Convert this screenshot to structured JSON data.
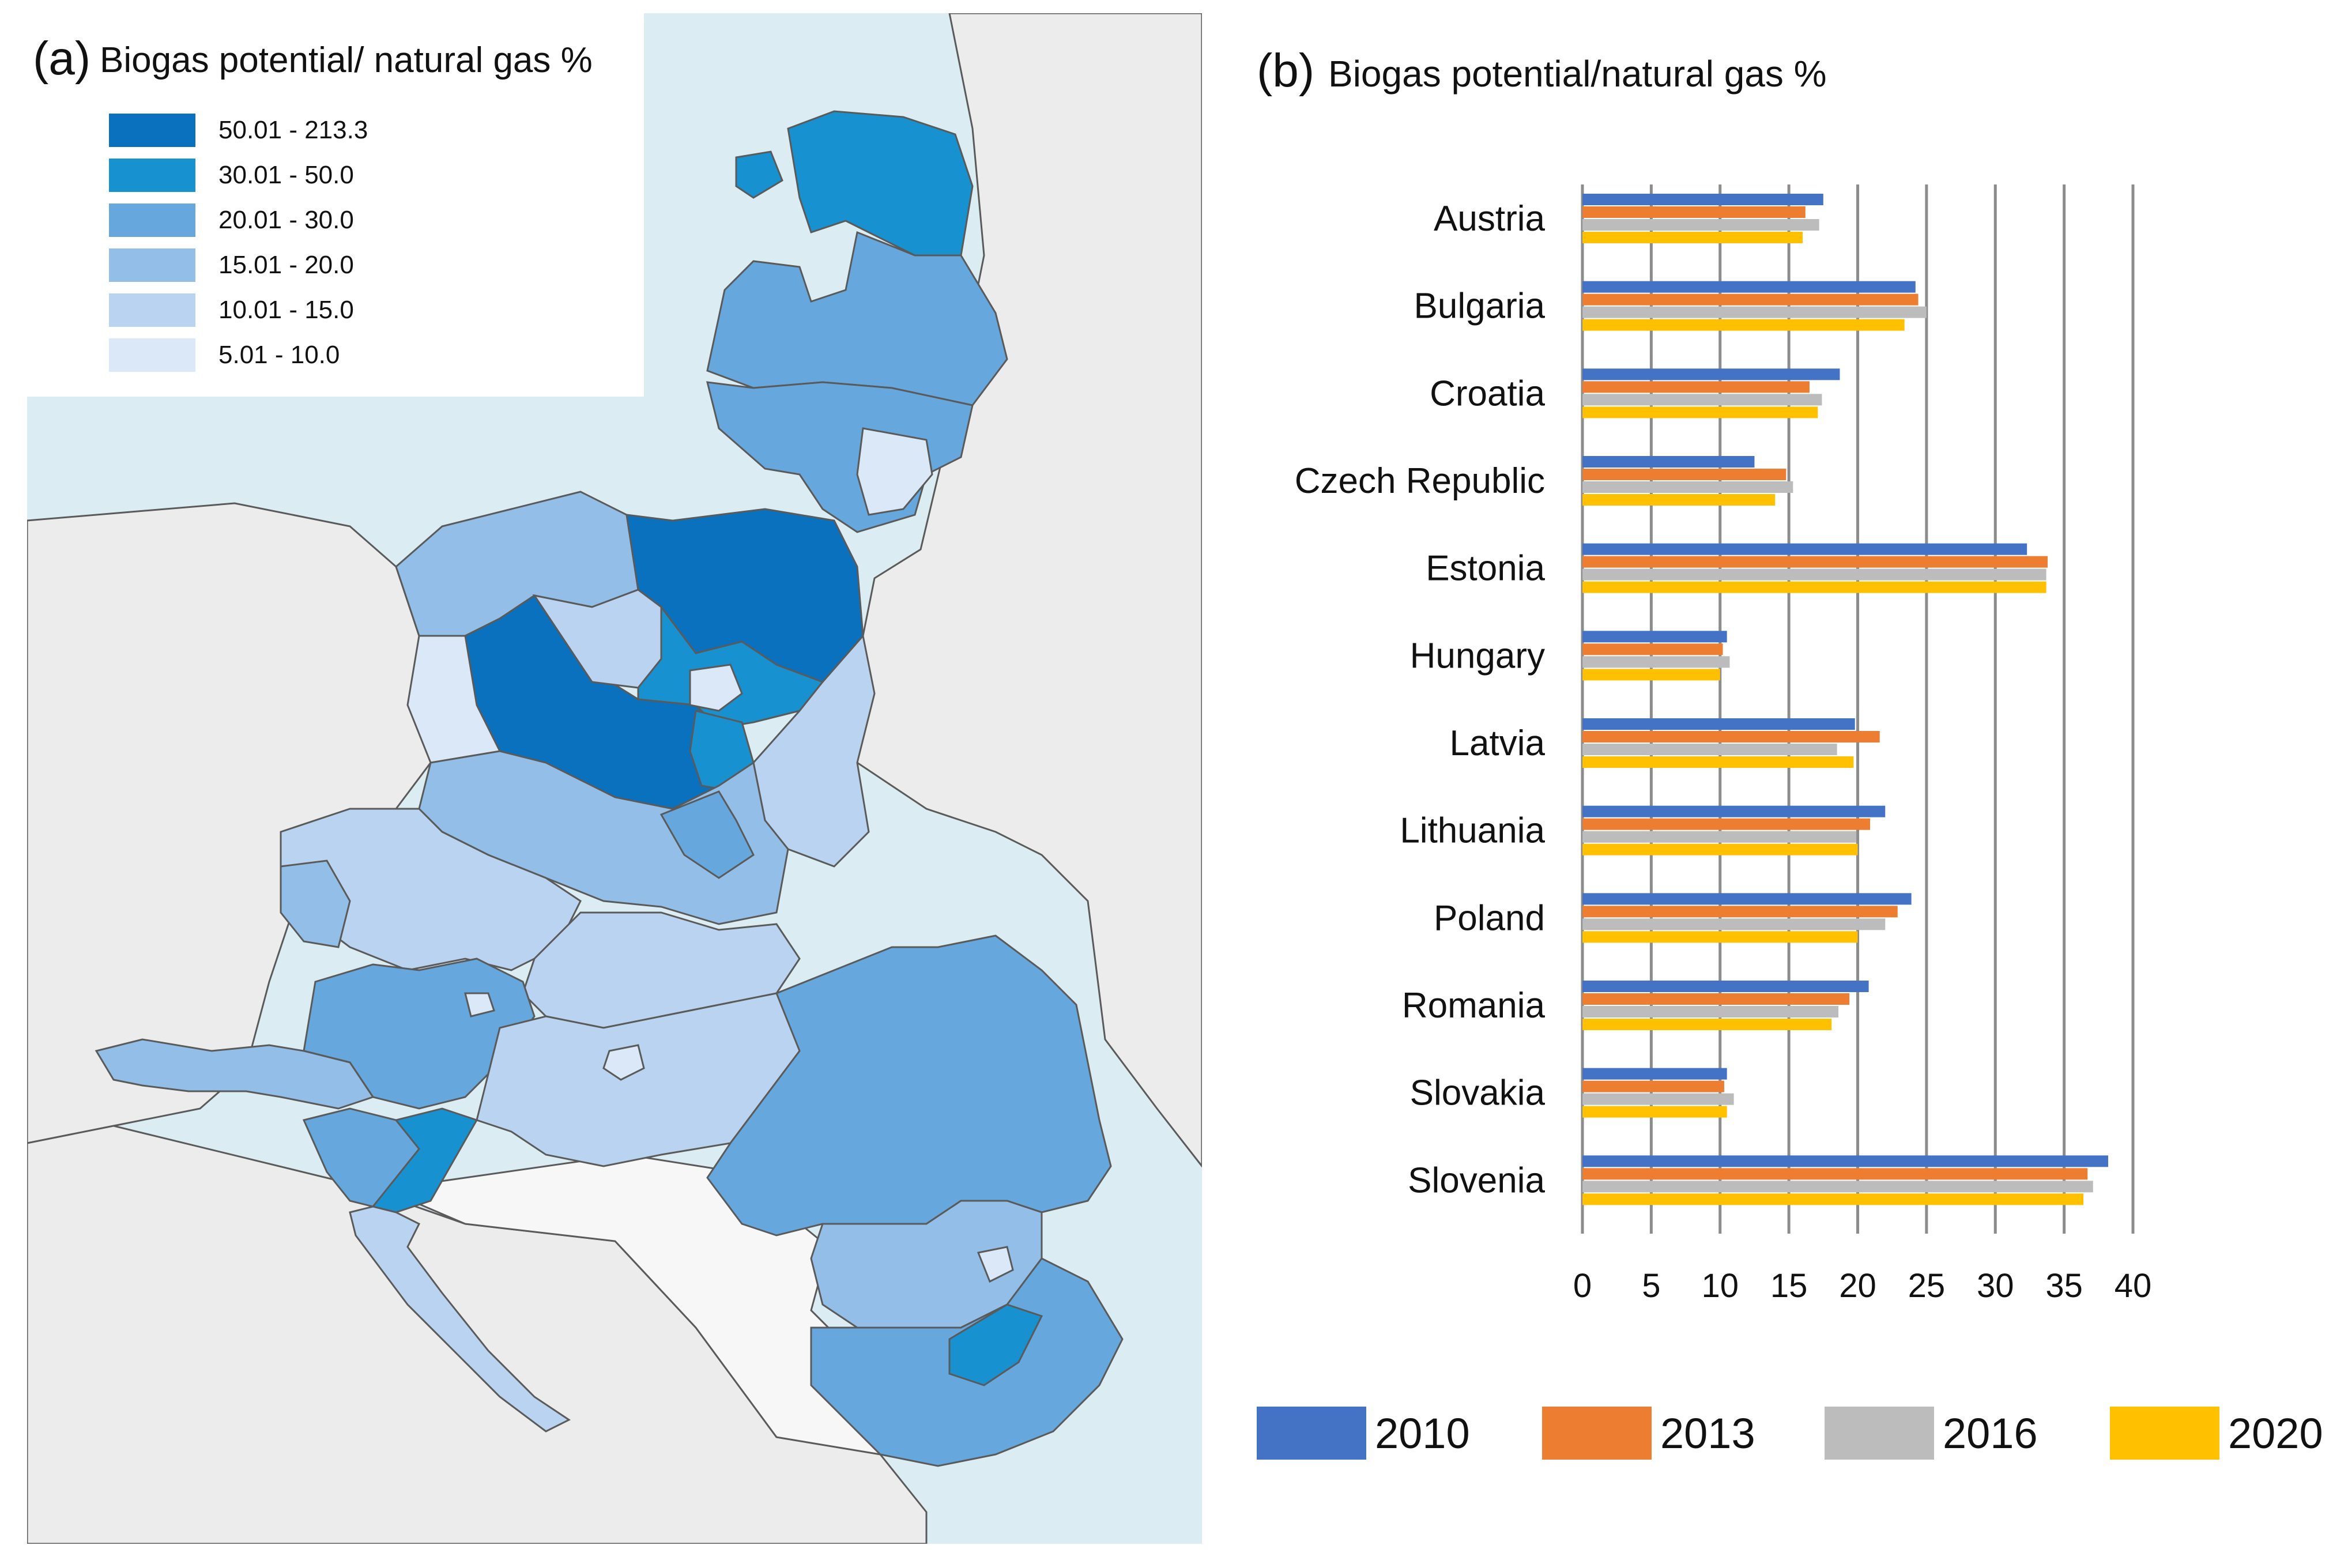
{
  "map_panel": {
    "letter": "(a)",
    "title": "Biogas potential/ natural gas %",
    "legend": [
      {
        "label": "50.01 - 213.3",
        "color": "#0a71bf"
      },
      {
        "label": "30.01 - 50.0",
        "color": "#1891d1"
      },
      {
        "label": "20.01 - 30.0",
        "color": "#66a7dd"
      },
      {
        "label": "15.01 - 20.0",
        "color": "#92bee8"
      },
      {
        "label": "10.01 - 15.0",
        "color": "#b9d3f0"
      },
      {
        "label": "5.01 - 10.0",
        "color": "#dae8f8"
      }
    ],
    "colors": {
      "sea": "#dbedf3",
      "land_outside": "#ececec",
      "border": "#5a5a5a"
    }
  },
  "chart_panel": {
    "letter": "(b)",
    "title": "Biogas potential/natural gas %"
  },
  "chart_data": {
    "type": "bar",
    "orientation": "horizontal",
    "title": "Biogas potential/natural gas %",
    "categories": [
      "Austria",
      "Bulgaria",
      "Croatia",
      "Czech Republic",
      "Estonia",
      "Hungary",
      "Latvia",
      "Lithuania",
      "Poland",
      "Romania",
      "Slovakia",
      "Slovenia"
    ],
    "series": [
      {
        "name": "2010",
        "color": "#4472c4",
        "values": [
          17.5,
          24.2,
          18.7,
          12.5,
          32.3,
          10.5,
          19.8,
          22.0,
          23.9,
          20.8,
          10.5,
          38.2
        ]
      },
      {
        "name": "2013",
        "color": "#ed7d31",
        "values": [
          16.2,
          24.4,
          16.5,
          14.8,
          33.8,
          10.2,
          21.6,
          20.9,
          22.9,
          19.4,
          10.3,
          36.7
        ]
      },
      {
        "name": "2016",
        "color": "#bcbcbc",
        "values": [
          17.2,
          25.0,
          17.4,
          15.3,
          33.7,
          10.7,
          18.5,
          19.9,
          22.0,
          18.6,
          11.0,
          37.1
        ]
      },
      {
        "name": "2020",
        "color": "#ffc000",
        "values": [
          16.0,
          23.4,
          17.1,
          14.0,
          33.7,
          10.0,
          19.7,
          20.0,
          20.0,
          18.1,
          10.5,
          36.4
        ]
      }
    ],
    "xlim": [
      0,
      40
    ],
    "xticks": [
      "0",
      "5",
      "10",
      "15",
      "20",
      "25",
      "30",
      "35",
      "40"
    ],
    "grid": "vertical",
    "legend_position": "bottom"
  }
}
